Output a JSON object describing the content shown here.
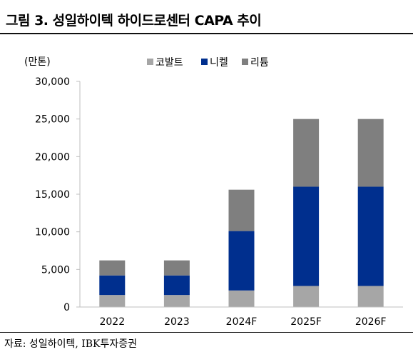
{
  "title": "그림 3. 성일하이텍 하이드로센터 CAPA 추이",
  "source": "자료: 성일하이텍, IBK투자증권",
  "colors": {
    "cobalt": "#a6a6a6",
    "nickel": "#002f8e",
    "lithium": "#7f7f7f",
    "axis": "#bfbfbf"
  },
  "chart_data": {
    "type": "bar",
    "stacked": true,
    "unit_label": "(만톤)",
    "categories": [
      "2022",
      "2023",
      "2024F",
      "2025F",
      "2026F"
    ],
    "series": [
      {
        "name": "코발트",
        "values": [
          1600,
          1600,
          2200,
          2800,
          2800
        ]
      },
      {
        "name": "니켈",
        "values": [
          2600,
          2600,
          7900,
          13200,
          13200
        ]
      },
      {
        "name": "리튬",
        "values": [
          2000,
          2000,
          5500,
          9000,
          9000
        ]
      }
    ],
    "ylim": [
      0,
      30000
    ],
    "yticks": [
      "0",
      "5,000",
      "10,000",
      "15,000",
      "20,000",
      "25,000",
      "30,000"
    ],
    "grid": false,
    "legend": "top-center"
  }
}
